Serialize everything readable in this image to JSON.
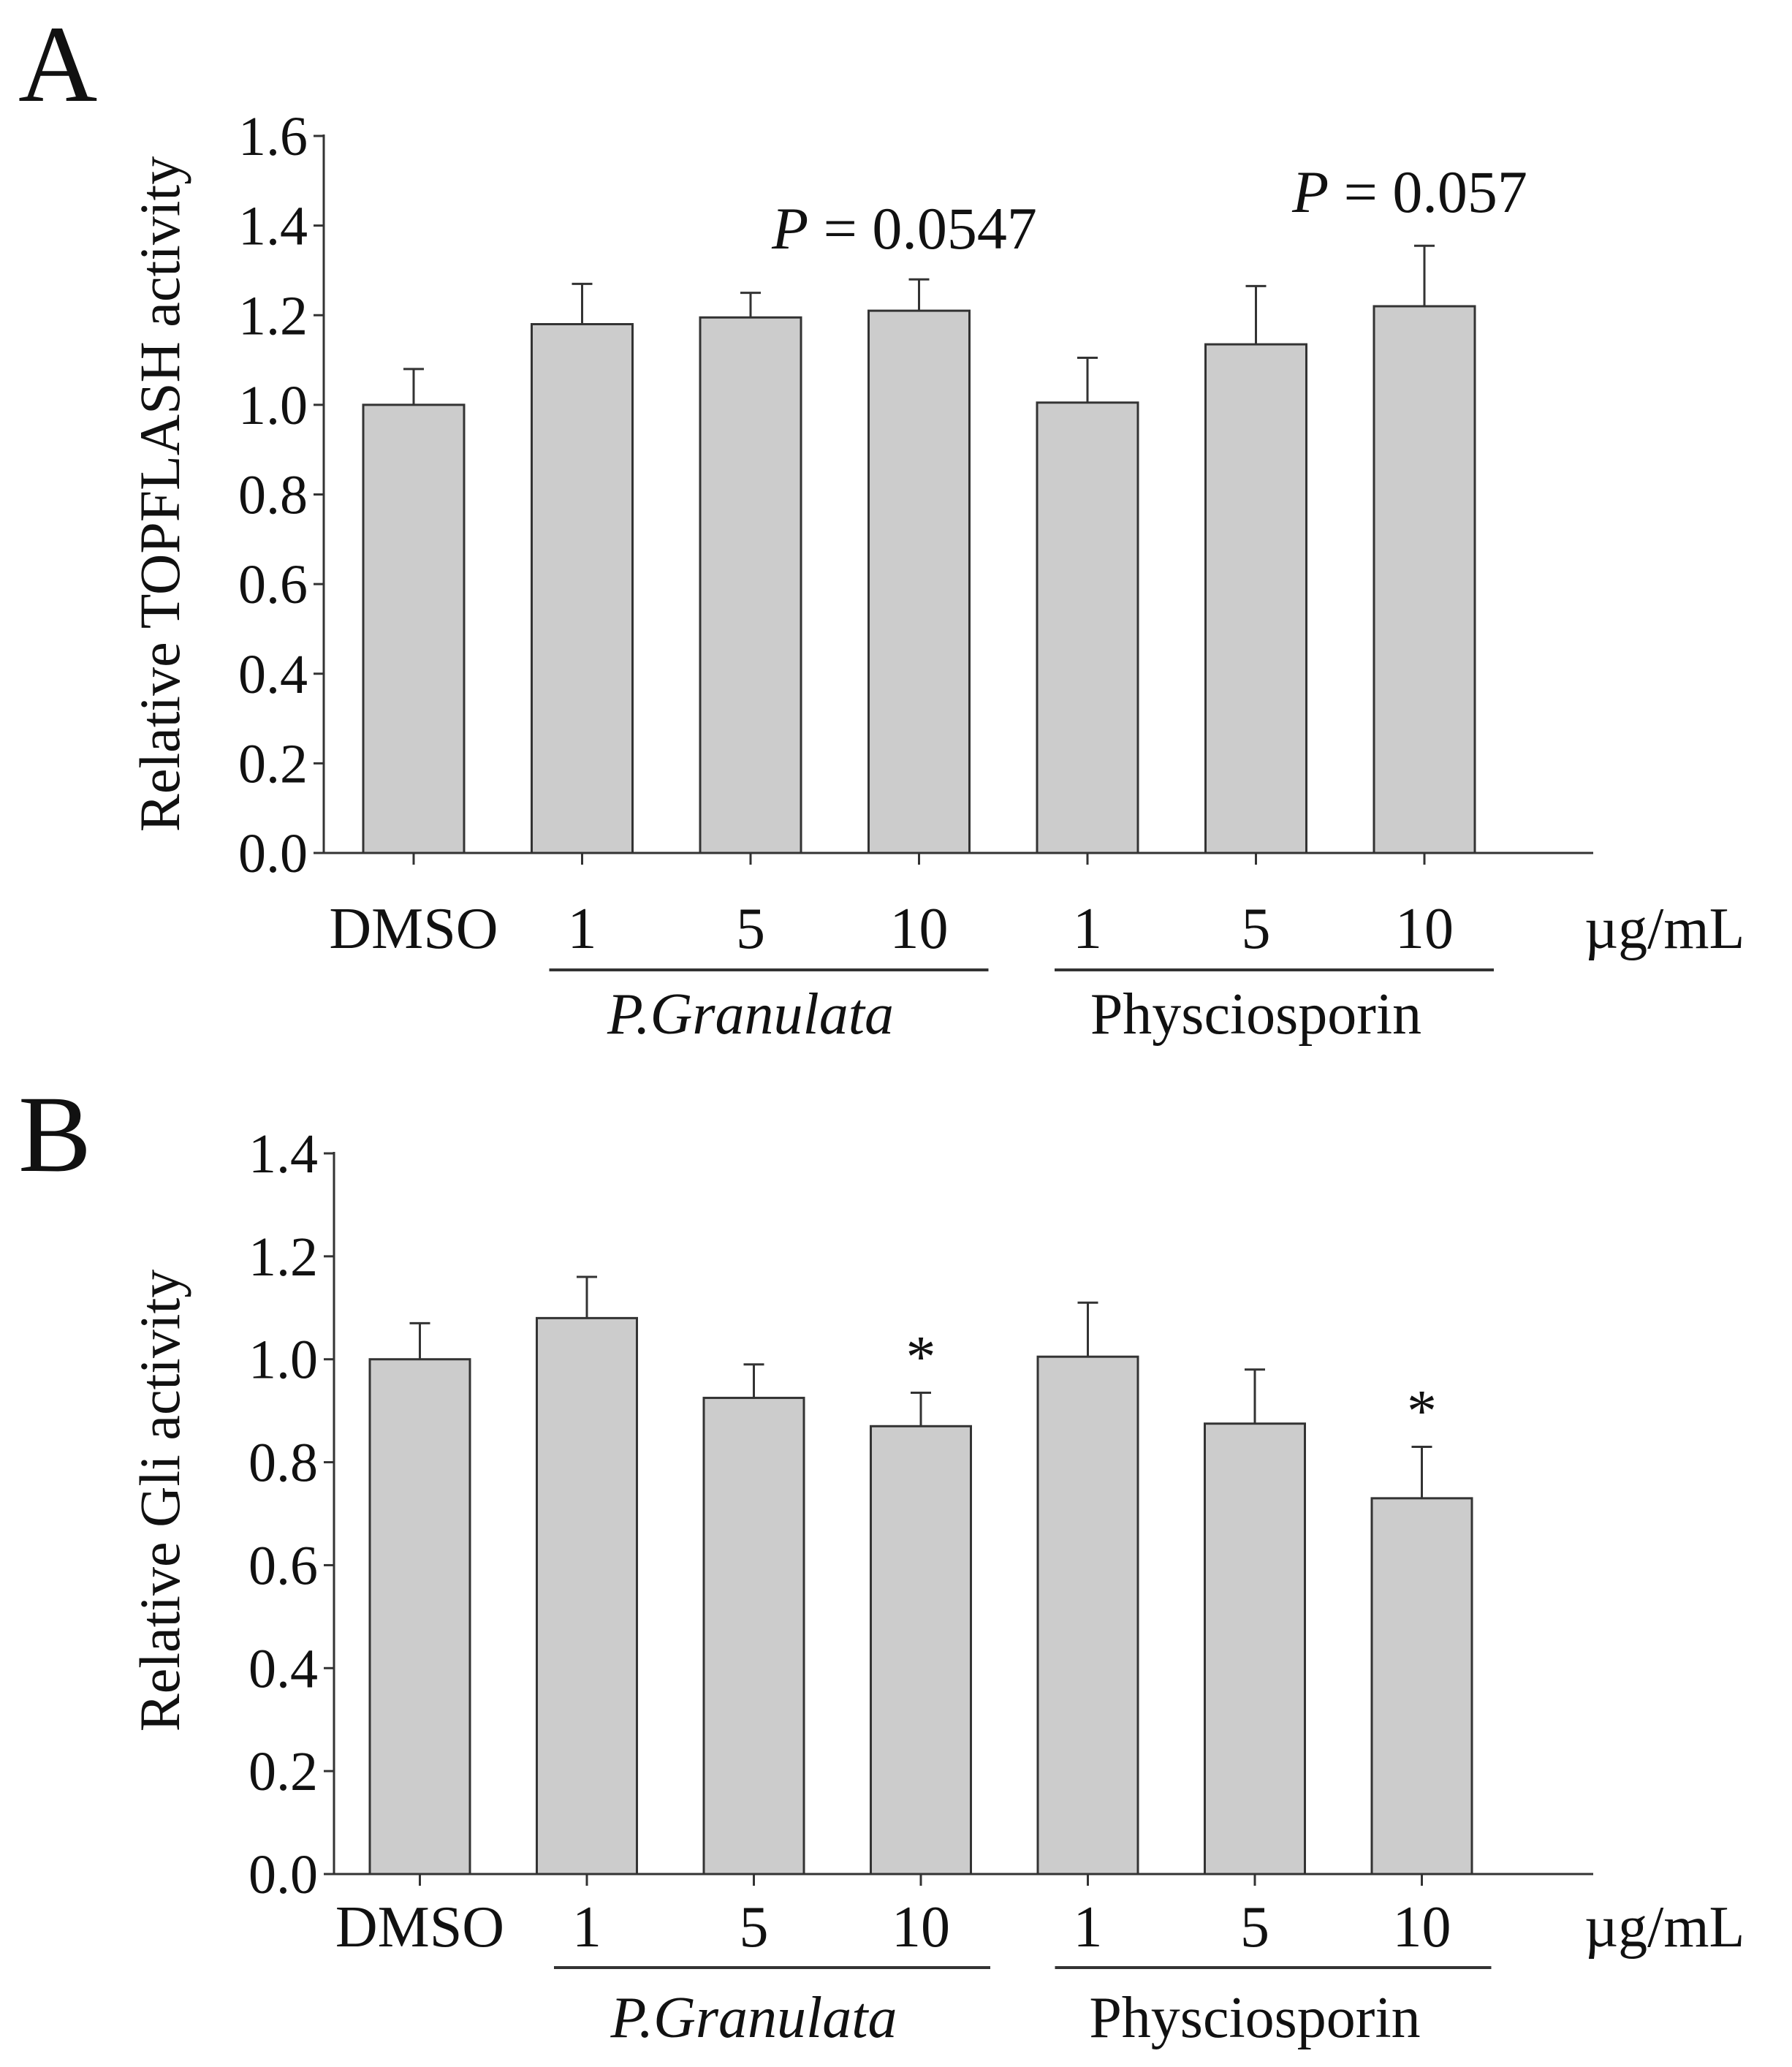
{
  "colors": {
    "bar_fill": "#cccccc",
    "bar_stroke": "#333333",
    "axis": "#333333"
  },
  "chart_data": [
    {
      "panel_label": "A",
      "type": "bar",
      "ylabel": "Relative TOPFLASH activity",
      "ylim": [
        0,
        1.6
      ],
      "yticks": [
        "0.0",
        "0.2",
        "0.4",
        "0.6",
        "0.8",
        "1.0",
        "1.2",
        "1.4",
        "1.6"
      ],
      "categories": [
        "DMSO",
        "1",
        "5",
        "10",
        "1",
        "5",
        "10"
      ],
      "values": [
        1.0,
        1.18,
        1.195,
        1.21,
        1.005,
        1.135,
        1.22
      ],
      "errors": [
        0.08,
        0.09,
        0.055,
        0.07,
        0.1,
        0.13,
        0.135
      ],
      "unit_label": "µg/mL",
      "groups": [
        {
          "label": "P.Granulata",
          "italic": true,
          "bars": [
            1,
            3
          ]
        },
        {
          "label": "Physciosporin",
          "italic": false,
          "bars": [
            4,
            6
          ]
        }
      ],
      "annotations": [
        {
          "bar": 3,
          "italic_part": "P",
          "text_part": " = 0.0547"
        },
        {
          "bar": 6,
          "italic_part": "P",
          "text_part": " = 0.057"
        }
      ]
    },
    {
      "panel_label": "B",
      "type": "bar",
      "ylabel": "Relative Gli activity",
      "ylim": [
        0,
        1.4
      ],
      "yticks": [
        "0.0",
        "0.2",
        "0.4",
        "0.6",
        "0.8",
        "1.0",
        "1.2",
        "1.4"
      ],
      "categories": [
        "DMSO",
        "1",
        "5",
        "10",
        "1",
        "5",
        "10"
      ],
      "values": [
        1.0,
        1.08,
        0.925,
        0.87,
        1.005,
        0.875,
        0.73
      ],
      "errors": [
        0.07,
        0.08,
        0.065,
        0.065,
        0.105,
        0.105,
        0.1
      ],
      "unit_label": "µg/mL",
      "groups": [
        {
          "label": "P.Granulata",
          "italic": true,
          "bars": [
            1,
            3
          ]
        },
        {
          "label": "Physciosporin",
          "italic": false,
          "bars": [
            4,
            6
          ]
        }
      ],
      "annotations": [
        {
          "bar": 3,
          "italic_part": "",
          "text_part": "*"
        },
        {
          "bar": 6,
          "italic_part": "",
          "text_part": "*"
        }
      ]
    }
  ]
}
